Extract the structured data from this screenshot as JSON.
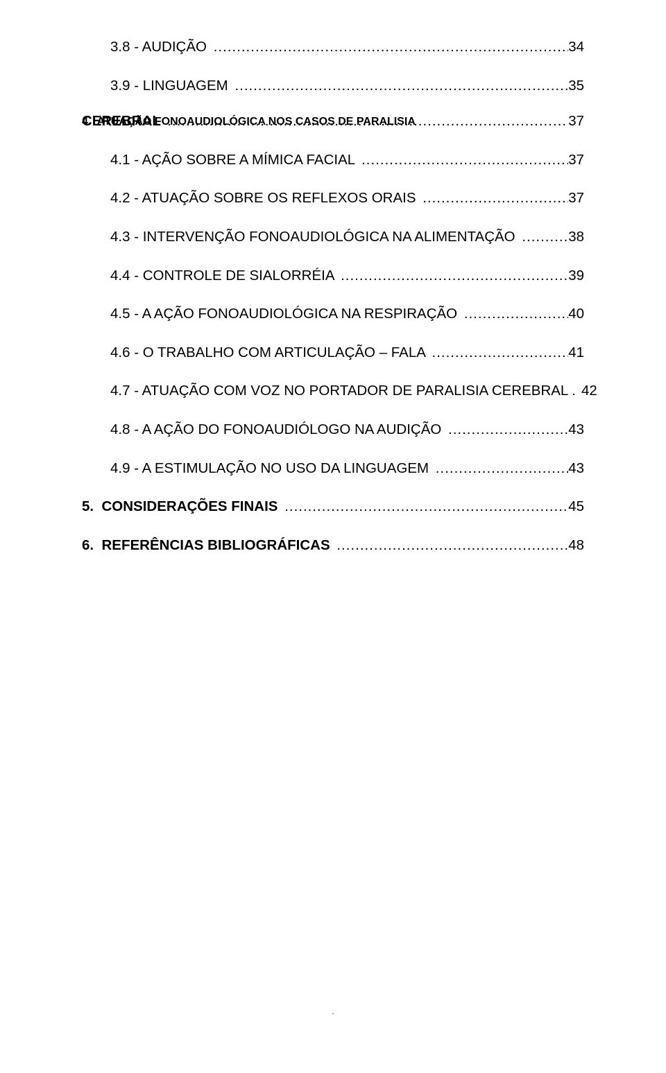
{
  "font": {
    "family": "Arial",
    "size_pt": 15,
    "color": "#000000"
  },
  "background_color": "#ffffff",
  "leader_dots": "..................................................................................................................................................................................",
  "entries": [
    {
      "indent": 1,
      "bold": false,
      "label": "3.8 - AUDIÇÃO ",
      "page": "34"
    },
    {
      "indent": 1,
      "bold": false,
      "label": "3.9 - LINGUAGEM ",
      "page": "35"
    },
    {
      "indent": 0,
      "bold": true,
      "label": "4.  ATUAÇÃO FONOAUDIOLÓGICA NOS CASOS DE PARALISIA",
      "wrap": "CEREBRAL ",
      "page": "37"
    },
    {
      "indent": 1,
      "bold": false,
      "label": "4.1 - AÇÃO SOBRE A MÍMICA FACIAL ",
      "page": "37"
    },
    {
      "indent": 1,
      "bold": false,
      "label": "4.2 - ATUAÇÃO SOBRE OS REFLEXOS ORAIS ",
      "page": "37"
    },
    {
      "indent": 1,
      "bold": false,
      "label": "4.3 - INTERVENÇÃO FONOAUDIOLÓGICA NA ALIMENTAÇÃO ",
      "page": "38"
    },
    {
      "indent": 1,
      "bold": false,
      "label": "4.4 - CONTROLE DE SIALORRÉIA ",
      "page": "39"
    },
    {
      "indent": 1,
      "bold": false,
      "label": "4.5 - A AÇÃO FONOAUDIOLÓGICA NA RESPIRAÇÃO ",
      "page": "40"
    },
    {
      "indent": 1,
      "bold": false,
      "label": "4.6 - O TRABALHO COM ARTICULAÇÃO – FALA ",
      "page": "41"
    },
    {
      "indent": 1,
      "bold": false,
      "label": "4.7 - ATUAÇÃO COM VOZ NO PORTADOR DE PARALISIA CEREBRAL ",
      "short_leader": ".",
      "page": "42"
    },
    {
      "indent": 1,
      "bold": false,
      "label": "4.8 - A AÇÃO DO FONOAUDIÓLOGO NA AUDIÇÃO ",
      "page": "43"
    },
    {
      "indent": 1,
      "bold": false,
      "label": "4.9 - A ESTIMULAÇÃO NO USO DA LINGUAGEM ",
      "page": "43"
    },
    {
      "indent": 0,
      "bold": true,
      "label": "5.  CONSIDERAÇÕES FINAIS ",
      "page": "45"
    },
    {
      "indent": 0,
      "bold": true,
      "label": "6.  REFERÊNCIAS BIBLIOGRÁFICAS ",
      "page": "48"
    }
  ]
}
